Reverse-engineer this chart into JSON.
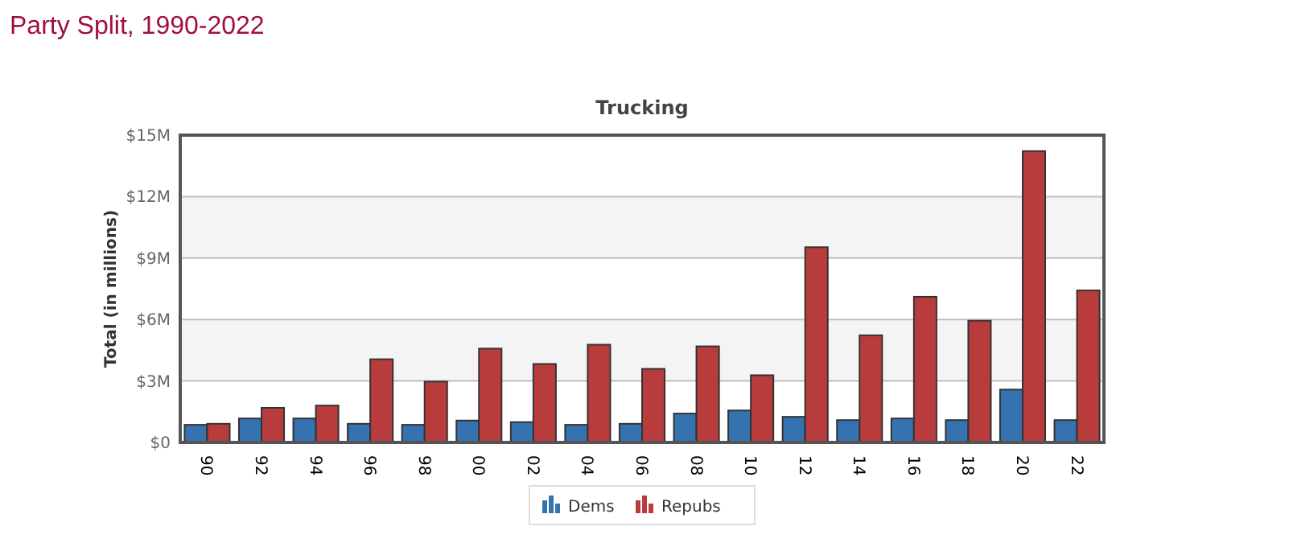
{
  "chart_data": {
    "type": "bar",
    "title": "Party Split, 1990-2022",
    "subtitle": "Trucking",
    "ylabel": "Total (in millions)",
    "categories": [
      "90",
      "92",
      "94",
      "96",
      "98",
      "00",
      "02",
      "04",
      "06",
      "08",
      "10",
      "12",
      "14",
      "16",
      "18",
      "20",
      "22"
    ],
    "series": [
      {
        "name": "Dems",
        "color": "#3572b0",
        "values": [
          0.86,
          1.17,
          1.17,
          0.91,
          0.86,
          1.07,
          0.99,
          0.86,
          0.91,
          1.41,
          1.56,
          1.25,
          1.09,
          1.17,
          1.09,
          2.58,
          1.09
        ]
      },
      {
        "name": "Repubs",
        "color": "#b93c3c",
        "values": [
          0.91,
          1.69,
          1.8,
          4.06,
          2.97,
          4.58,
          3.83,
          4.77,
          3.59,
          4.69,
          3.28,
          9.53,
          5.23,
          7.11,
          5.94,
          14.22,
          7.42
        ]
      }
    ],
    "ylim": [
      0,
      15
    ],
    "yticks": [
      {
        "value": 0,
        "label": "$0"
      },
      {
        "value": 3,
        "label": "$3M"
      },
      {
        "value": 6,
        "label": "$6M"
      },
      {
        "value": 9,
        "label": "$9M"
      },
      {
        "value": 12,
        "label": "$12M"
      },
      {
        "value": 15,
        "label": "$15M"
      }
    ],
    "grid": "y",
    "legend": "bottom"
  }
}
